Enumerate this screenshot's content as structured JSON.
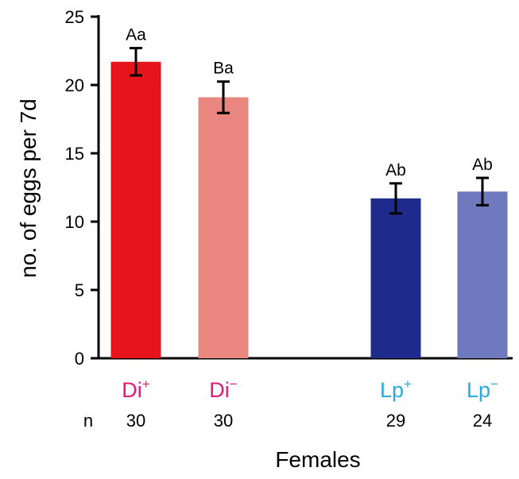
{
  "chart_data": {
    "type": "bar",
    "categories": [
      {
        "base": "Di",
        "sup": "+",
        "color": "#e0197d"
      },
      {
        "base": "Di",
        "sup": "−",
        "color": "#e0197d"
      },
      {
        "base": "Lp",
        "sup": "+",
        "color": "#2aa9e0"
      },
      {
        "base": "Lp",
        "sup": "−",
        "color": "#2aa9e0"
      }
    ],
    "values": [
      21.7,
      19.1,
      11.7,
      12.2
    ],
    "errors": [
      1.0,
      1.15,
      1.1,
      1.0
    ],
    "bar_colors": [
      "#e8141c",
      "#e8867f",
      "#1e2a8c",
      "#6f79bd"
    ],
    "bar_labels": [
      "Aa",
      "Ba",
      "Ab",
      "Ab"
    ],
    "n_label": "n",
    "n_values": [
      "30",
      "30",
      "29",
      "24"
    ],
    "ylabel": "no. of eggs per 7d",
    "xlabel": "Females",
    "ylim": [
      0,
      25
    ],
    "yticks": [
      0,
      5,
      10,
      15,
      20,
      25
    ],
    "grid": false
  }
}
